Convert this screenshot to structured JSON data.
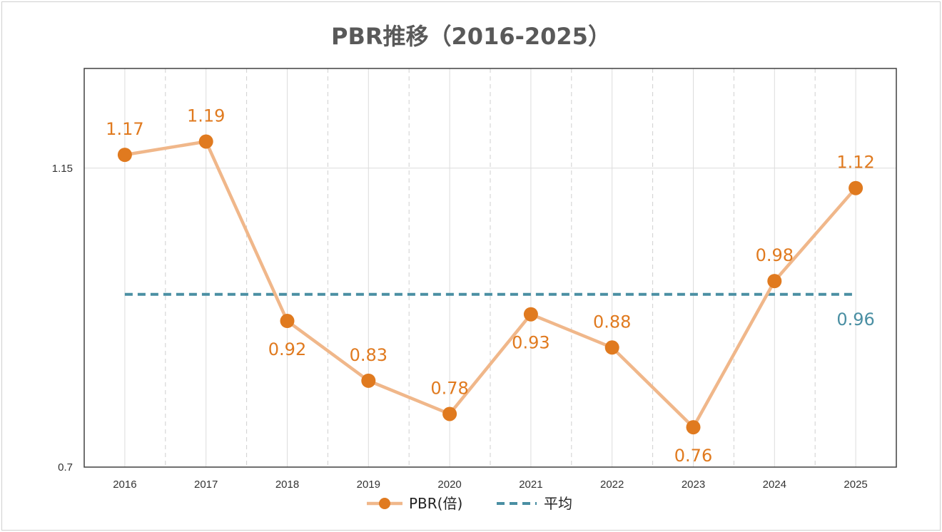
{
  "chart_data": {
    "type": "line",
    "title": "PBR推移（2016-2025）",
    "xlabel": "",
    "ylabel": "",
    "categories": [
      "2016",
      "2017",
      "2018",
      "2019",
      "2020",
      "2021",
      "2022",
      "2023",
      "2024",
      "2025"
    ],
    "series": [
      {
        "name": "PBR(倍)",
        "values": [
          1.17,
          1.19,
          0.92,
          0.83,
          0.78,
          0.93,
          0.88,
          0.76,
          0.98,
          1.12
        ],
        "labels": [
          "1.17",
          "1.19",
          "0.92",
          "0.83",
          "0.78",
          "0.93",
          "0.88",
          "0.76",
          "0.98",
          "1.12"
        ],
        "label_position": [
          "above",
          "above",
          "below",
          "above",
          "above",
          "below",
          "above",
          "below",
          "above",
          "above"
        ],
        "color": "#e07a1f",
        "line_color": "#f0b78a"
      },
      {
        "name": "平均",
        "value": 0.96,
        "label": "0.96",
        "color": "#4a8fa3",
        "style": "dashed"
      }
    ],
    "ylim": [
      0.7,
      1.3
    ],
    "yticks": [
      0.7,
      1.15
    ],
    "ytick_labels": [
      "0.7",
      "1.15"
    ],
    "grid": true,
    "legend": "bottom"
  }
}
